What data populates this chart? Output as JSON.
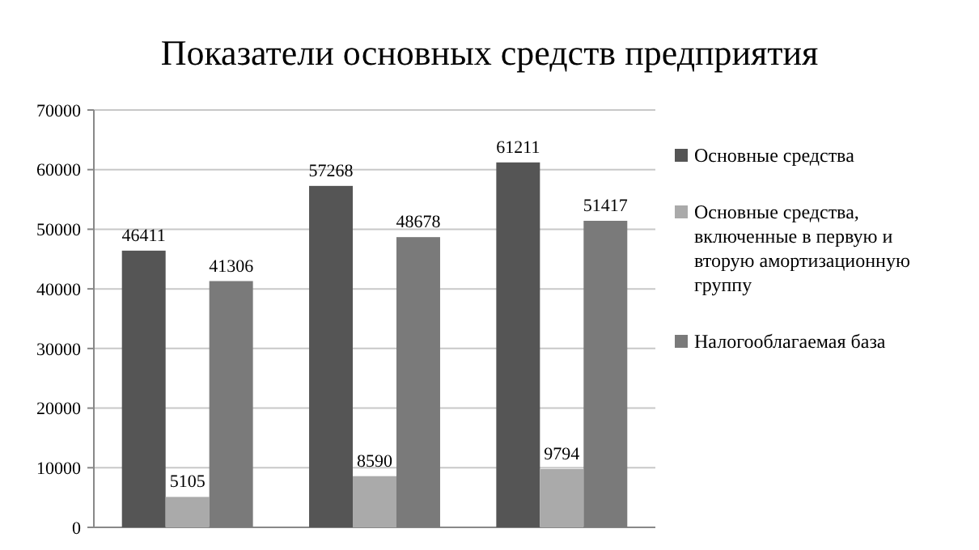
{
  "chart_data": {
    "type": "bar",
    "title": "Показатели основных средств предприятия",
    "categories": [
      null,
      null,
      null
    ],
    "series": [
      {
        "name": "Основные средства",
        "color": "#555555",
        "values": [
          46411,
          57268,
          61211
        ]
      },
      {
        "name": "Основные средства, включенные в первую и вторую амортизационную группу",
        "color": "#aaaaaa",
        "values": [
          5105,
          8590,
          9794
        ]
      },
      {
        "name": "Налогооблагаемая база",
        "color": "#7a7a7a",
        "values": [
          41306,
          48678,
          51417
        ]
      }
    ],
    "ylim": [
      0,
      70000
    ],
    "yticks": [
      0,
      10000,
      20000,
      30000,
      40000,
      50000,
      60000,
      70000
    ],
    "grid": "y",
    "legend": "right",
    "data_labels": true
  }
}
